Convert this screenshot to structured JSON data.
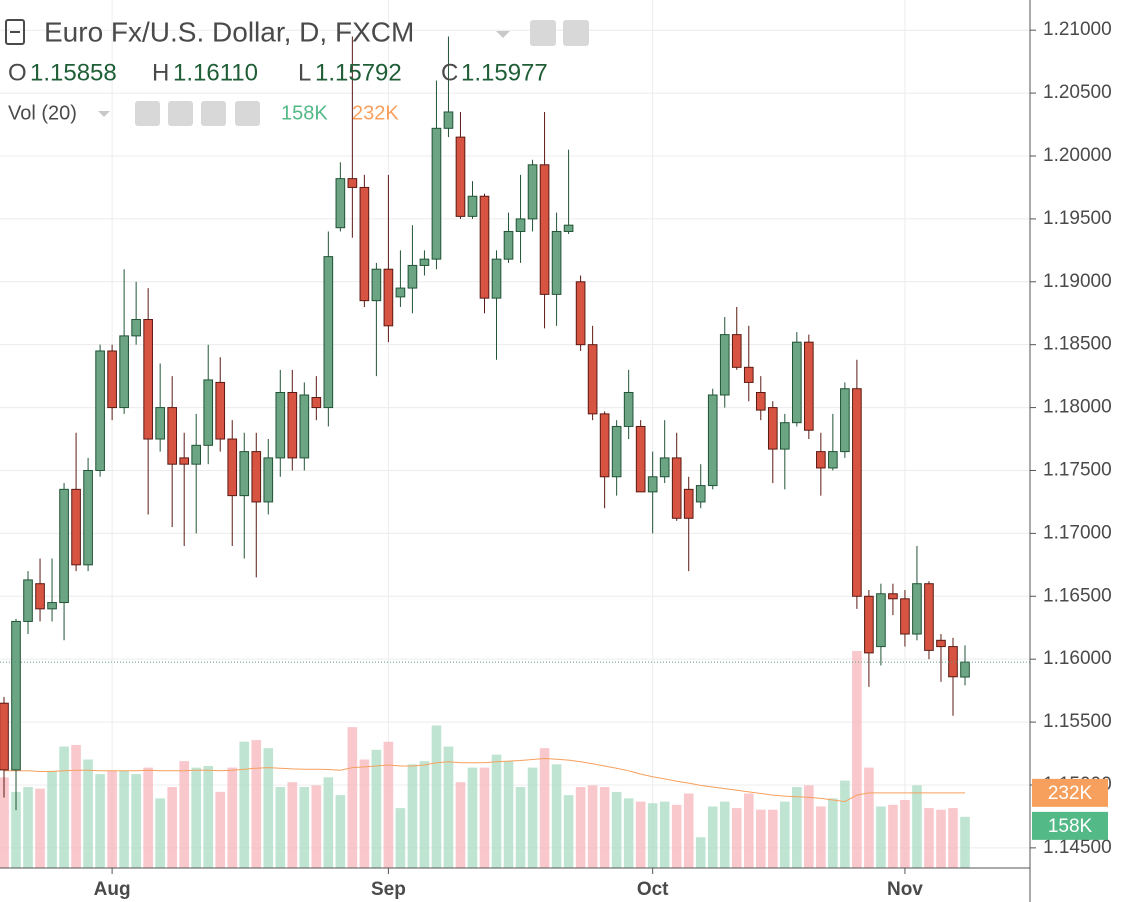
{
  "header": {
    "title": "Euro Fx/U.S. Dollar, D, FXCM",
    "ohlc": [
      {
        "key": "O",
        "value": "1.15858"
      },
      {
        "key": "H",
        "value": "1.16110"
      },
      {
        "key": "L",
        "value": "1.15792"
      },
      {
        "key": "C",
        "value": "1.15977"
      }
    ],
    "indicator": "Vol (20)"
  },
  "chart_data": {
    "type": "candlestick",
    "categories": [
      null,
      null,
      null,
      null,
      null,
      null,
      null,
      null,
      null,
      "Aug",
      null,
      null,
      null,
      null,
      null,
      null,
      null,
      null,
      null,
      null,
      null,
      null,
      null,
      null,
      null,
      null,
      null,
      null,
      null,
      null,
      null,
      null,
      "Sep",
      null,
      null,
      null,
      null,
      null,
      null,
      null,
      null,
      null,
      null,
      null,
      null,
      null,
      null,
      null,
      null,
      null,
      null,
      null,
      null,
      null,
      "Oct",
      null,
      null,
      null,
      null,
      null,
      null,
      null,
      null,
      null,
      null,
      null,
      null,
      null,
      null,
      null,
      null,
      null,
      null,
      null,
      null,
      "Nov",
      null,
      null,
      null,
      null,
      null
    ],
    "open": [
      1.1565,
      1.1512,
      1.163,
      1.166,
      1.164,
      1.1645,
      1.1735,
      1.1675,
      1.175,
      1.1845,
      1.18,
      1.1857,
      1.187,
      1.1775,
      1.18,
      1.176,
      1.1755,
      1.177,
      1.182,
      1.1775,
      1.173,
      1.1765,
      1.1725,
      1.176,
      1.1812,
      1.176,
      1.1808,
      1.18,
      1.1943,
      1.1982,
      1.1975,
      1.1885,
      1.191,
      1.1888,
      1.1895,
      1.1913,
      1.1918,
      1.2022,
      1.2015,
      1.1952,
      1.1968,
      1.1887,
      1.1918,
      1.194,
      1.195,
      1.1993,
      1.189,
      1.194,
      1.19,
      1.185,
      1.1795,
      1.1745,
      1.1785,
      1.1785,
      1.1733,
      1.1745,
      1.176,
      1.1735,
      1.1725,
      1.1738,
      1.181,
      1.1858,
      1.1832,
      1.1812,
      1.18,
      1.1767,
      1.1788,
      1.1852,
      1.1765,
      1.1752,
      1.1765,
      1.1815,
      1.165,
      1.161,
      1.1652,
      1.1648,
      1.162,
      1.166,
      1.1615,
      1.161,
      1.15858
    ],
    "high": [
      1.157,
      1.1632,
      1.167,
      1.168,
      1.168,
      1.174,
      1.178,
      1.176,
      1.185,
      1.185,
      1.191,
      1.19,
      1.1895,
      1.1835,
      1.1825,
      1.178,
      1.1795,
      1.185,
      1.184,
      1.179,
      1.178,
      1.178,
      1.1775,
      1.183,
      1.183,
      1.182,
      1.1825,
      1.194,
      1.1995,
      1.2095,
      1.1985,
      1.1915,
      1.1985,
      1.1925,
      1.1945,
      1.1925,
      1.206,
      1.2095,
      1.2035,
      1.198,
      1.197,
      1.1925,
      1.1955,
      1.1985,
      1.1997,
      1.2035,
      1.1955,
      1.2005,
      1.1905,
      1.1865,
      1.1797,
      1.179,
      1.183,
      1.179,
      1.1765,
      1.179,
      1.178,
      1.1745,
      1.1755,
      1.1815,
      1.1872,
      1.188,
      1.1865,
      1.1825,
      1.1805,
      1.1795,
      1.186,
      1.1858,
      1.178,
      1.1795,
      1.182,
      1.1838,
      1.1655,
      1.166,
      1.166,
      1.1655,
      1.169,
      1.1662,
      1.162,
      1.1617,
      1.1611
    ],
    "low": [
      1.149,
      1.148,
      1.162,
      1.163,
      1.163,
      1.1615,
      1.167,
      1.167,
      1.1745,
      1.179,
      1.1795,
      1.185,
      1.1715,
      1.1765,
      1.1705,
      1.169,
      1.17,
      1.1755,
      1.1765,
      1.169,
      1.168,
      1.1665,
      1.1715,
      1.1745,
      1.175,
      1.175,
      1.179,
      1.1785,
      1.194,
      1.1935,
      1.188,
      1.1825,
      1.1852,
      1.188,
      1.1875,
      1.1905,
      1.191,
      1.2015,
      1.195,
      1.195,
      1.1875,
      1.1838,
      1.1915,
      1.1915,
      1.194,
      1.1863,
      1.1865,
      1.1938,
      1.1845,
      1.179,
      1.172,
      1.173,
      1.1775,
      1.1733,
      1.17,
      1.174,
      1.171,
      1.167,
      1.172,
      1.1735,
      1.18,
      1.183,
      1.1805,
      1.179,
      1.174,
      1.1735,
      1.1785,
      1.1775,
      1.173,
      1.175,
      1.176,
      1.164,
      1.1578,
      1.1595,
      1.1635,
      1.161,
      1.1615,
      1.16,
      1.1582,
      1.1555,
      1.15792
    ],
    "close": [
      1.1512,
      1.163,
      1.1663,
      1.164,
      1.1645,
      1.1735,
      1.1675,
      1.175,
      1.1845,
      1.18,
      1.1857,
      1.187,
      1.1775,
      1.18,
      1.1755,
      1.1755,
      1.177,
      1.1822,
      1.1775,
      1.173,
      1.1765,
      1.1725,
      1.176,
      1.1812,
      1.176,
      1.181,
      1.18,
      1.192,
      1.1982,
      1.1975,
      1.1885,
      1.191,
      1.1865,
      1.1895,
      1.1913,
      1.1918,
      1.2022,
      1.2035,
      1.1952,
      1.1968,
      1.1887,
      1.1918,
      1.194,
      1.195,
      1.1993,
      1.189,
      1.194,
      1.1945,
      1.185,
      1.1795,
      1.1745,
      1.1785,
      1.1812,
      1.1733,
      1.1745,
      1.176,
      1.1712,
      1.1712,
      1.1738,
      1.181,
      1.1858,
      1.1832,
      1.182,
      1.1798,
      1.1767,
      1.1788,
      1.1852,
      1.1782,
      1.1752,
      1.1765,
      1.1815,
      1.165,
      1.1605,
      1.1652,
      1.1648,
      1.162,
      1.166,
      1.1607,
      1.161,
      1.1586,
      1.15977
    ],
    "up_color": "#6ba583",
    "up_border": "#225437",
    "down_color": "#d75442",
    "down_border": "#5b1a13",
    "ylim": [
      1.1434,
      1.2124
    ],
    "yticks": [
      {
        "value": 1.145,
        "label": "1.14500"
      },
      {
        "value": 1.15,
        "label": "1.15000"
      },
      {
        "value": 1.155,
        "label": "1.15500"
      },
      {
        "value": 1.16,
        "label": "1.16000"
      },
      {
        "value": 1.165,
        "label": "1.16500"
      },
      {
        "value": 1.17,
        "label": "1.17000"
      },
      {
        "value": 1.175,
        "label": "1.17500"
      },
      {
        "value": 1.18,
        "label": "1.18000"
      },
      {
        "value": 1.185,
        "label": "1.18500"
      },
      {
        "value": 1.19,
        "label": "1.19000"
      },
      {
        "value": 1.195,
        "label": "1.19500"
      },
      {
        "value": 1.2,
        "label": "1.20000"
      },
      {
        "value": 1.205,
        "label": "1.20500"
      },
      {
        "value": 1.21,
        "label": "1.21000"
      }
    ],
    "grid": true,
    "y2lim": [
      0,
      2680000
    ],
    "volume": {
      "axis": "y2",
      "up_color": "#a9dcc3",
      "down_color": "#f7b5bb",
      "values": [
        280000,
        235000,
        250000,
        245000,
        300000,
        375000,
        380000,
        335000,
        290000,
        300000,
        300000,
        290000,
        310000,
        215000,
        250000,
        330000,
        310000,
        315000,
        235000,
        310000,
        390000,
        395000,
        370000,
        250000,
        265000,
        250000,
        255000,
        280000,
        225000,
        435000,
        335000,
        365000,
        390000,
        185000,
        320000,
        330000,
        440000,
        375000,
        265000,
        310000,
        310000,
        350000,
        330000,
        250000,
        310000,
        370000,
        320000,
        225000,
        250000,
        255000,
        250000,
        235000,
        215000,
        205000,
        200000,
        205000,
        195000,
        230000,
        95000,
        190000,
        205000,
        185000,
        230000,
        180000,
        180000,
        205000,
        250000,
        255000,
        190000,
        215000,
        270000,
        670000,
        310000,
        190000,
        195000,
        210000,
        255000,
        185000,
        180000,
        185000,
        158000
      ],
      "value_labels": [
        null,
        null,
        null,
        null,
        null,
        null,
        null,
        null,
        null,
        null,
        null,
        null,
        null,
        null,
        null,
        null,
        null,
        null,
        null,
        null,
        null,
        null,
        null,
        null,
        null,
        null,
        null,
        null,
        null,
        null,
        null,
        null,
        null,
        null,
        null,
        null,
        null,
        null,
        null,
        null,
        null,
        null,
        null,
        null,
        null,
        null,
        null,
        null,
        null,
        null,
        null,
        null,
        null,
        null,
        null,
        null,
        null,
        null,
        null,
        null,
        null,
        null,
        null,
        null,
        null,
        null,
        null,
        null,
        null,
        null,
        null,
        null,
        null,
        null,
        null,
        null,
        null,
        null,
        null,
        null,
        "158K"
      ],
      "label_color": "#53b987"
    },
    "volume_ma": {
      "axis": "y2",
      "color": "#f7a05e",
      "values": [
        300000,
        300000,
        300000,
        298000,
        298000,
        300000,
        302000,
        302000,
        300000,
        300000,
        300000,
        300000,
        302000,
        300000,
        300000,
        300000,
        302000,
        302000,
        300000,
        302000,
        305000,
        308000,
        310000,
        308000,
        306000,
        305000,
        305000,
        304000,
        302000,
        310000,
        312000,
        315000,
        318000,
        315000,
        315000,
        318000,
        325000,
        328000,
        325000,
        325000,
        325000,
        328000,
        330000,
        332000,
        335000,
        338000,
        336000,
        333000,
        328000,
        322000,
        315000,
        308000,
        300000,
        290000,
        282000,
        275000,
        268000,
        262000,
        255000,
        250000,
        245000,
        240000,
        235000,
        230000,
        225000,
        222000,
        220000,
        218000,
        215000,
        210000,
        205000,
        225000,
        232000,
        232000,
        232000,
        232000,
        232000,
        232000,
        232000,
        232000,
        232000
      ],
      "value_labels": [
        null,
        null,
        null,
        null,
        null,
        null,
        null,
        null,
        null,
        null,
        null,
        null,
        null,
        null,
        null,
        null,
        null,
        null,
        null,
        null,
        null,
        null,
        null,
        null,
        null,
        null,
        null,
        null,
        null,
        null,
        null,
        null,
        null,
        null,
        null,
        null,
        null,
        null,
        null,
        null,
        null,
        null,
        null,
        null,
        null,
        null,
        null,
        null,
        null,
        null,
        null,
        null,
        null,
        null,
        null,
        null,
        null,
        null,
        null,
        null,
        null,
        null,
        null,
        null,
        null,
        null,
        null,
        null,
        null,
        null,
        null,
        null,
        null,
        null,
        null,
        null,
        null,
        null,
        null,
        null,
        "232K"
      ]
    }
  }
}
